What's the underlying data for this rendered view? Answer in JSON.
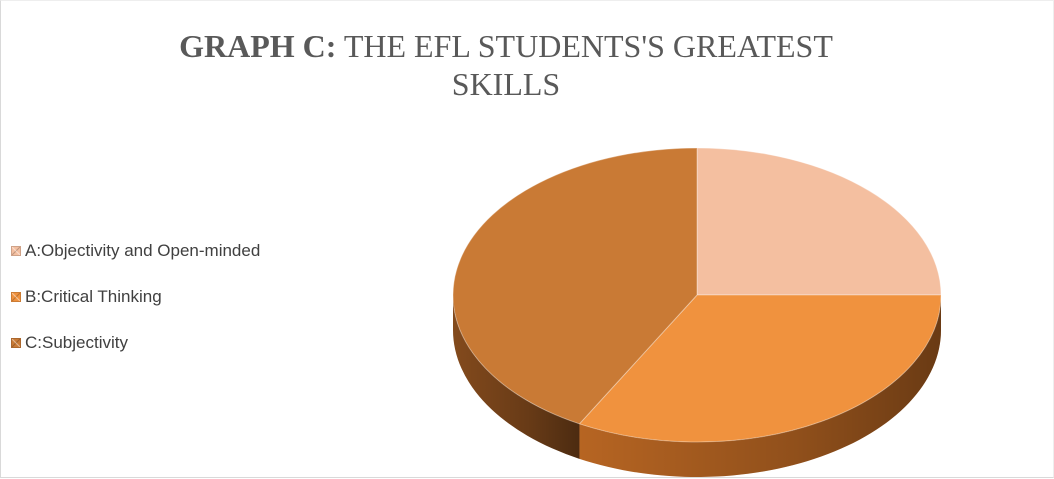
{
  "chart_data": {
    "type": "pie",
    "title_bold": "GRAPH C:",
    "title_rest": " THE EFL  STUDENTS'S GREATEST",
    "title_line2": "SKILLS",
    "categories": [
      "A:Objectivity and Open-minded",
      "B:Critical Thinking",
      "C:Subjectivity"
    ],
    "values": [
      25,
      33,
      42
    ],
    "colors": [
      "#F4BFA0",
      "#F0923E",
      "#C97A35"
    ],
    "side_colors": [
      "#B27457",
      "#C06A24",
      "#8A4E1E"
    ],
    "legend_position": "left",
    "style": "3d",
    "data_labels": false
  }
}
